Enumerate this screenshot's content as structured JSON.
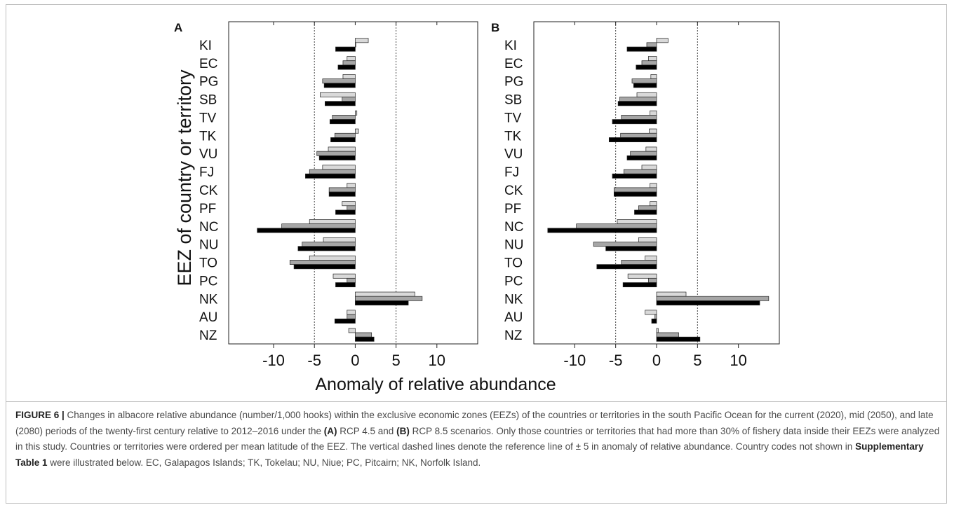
{
  "chart_data": {
    "type": "bar",
    "orientation": "horizontal",
    "ylabel": "EEZ of country or territory",
    "xlabel": "Anomaly of relative abundance",
    "categories": [
      "KI",
      "EC",
      "PG",
      "SB",
      "TV",
      "TK",
      "VU",
      "FJ",
      "CK",
      "PF",
      "NC",
      "NU",
      "TO",
      "PC",
      "NK",
      "AU",
      "NZ"
    ],
    "reference_lines": [
      -5,
      5
    ],
    "xticks": [
      -10,
      -5,
      0,
      5,
      10
    ],
    "series_colors": [
      "#d9d9d9",
      "#a6a6a6",
      "#000000"
    ],
    "panels": [
      {
        "label": "A",
        "xlim": [
          -15.5,
          15
        ],
        "series": [
          {
            "values": [
              1.6,
              -1.0,
              -1.5,
              -4.3,
              0.2,
              0.4,
              -3.3,
              -4.0,
              -1.0,
              -1.6,
              -5.6,
              -3.9,
              -5.6,
              -2.7,
              7.3,
              -1.0,
              -0.8
            ]
          },
          {
            "values": [
              0.0,
              -1.5,
              -4.0,
              -1.6,
              -2.8,
              -2.5,
              -4.7,
              -5.6,
              -3.2,
              -1.0,
              -9.0,
              -6.5,
              -8.0,
              -1.0,
              8.2,
              -1.0,
              2.0
            ]
          },
          {
            "values": [
              -2.4,
              -2.1,
              -3.8,
              -3.7,
              -3.1,
              -3.0,
              -4.4,
              -6.1,
              -3.2,
              -2.4,
              -12.0,
              -7.0,
              -7.5,
              -2.4,
              6.5,
              -2.5,
              2.3
            ]
          }
        ]
      },
      {
        "label": "B",
        "xlim": [
          -15,
          15
        ],
        "series": [
          {
            "values": [
              1.4,
              -1.0,
              -0.7,
              -2.4,
              -0.8,
              -0.9,
              -1.3,
              -1.8,
              -0.8,
              -0.8,
              -4.8,
              -2.2,
              -1.4,
              -3.5,
              3.6,
              -1.4,
              0.2
            ]
          },
          {
            "values": [
              -1.2,
              -1.8,
              -3.0,
              -4.5,
              -4.3,
              -4.4,
              -3.2,
              -4.0,
              -5.2,
              -2.2,
              -9.8,
              -7.7,
              -4.3,
              -1.0,
              13.7,
              -0.2,
              2.7
            ]
          },
          {
            "values": [
              -3.6,
              -2.5,
              -2.8,
              -4.7,
              -5.4,
              -5.8,
              -3.6,
              -5.4,
              -5.2,
              -2.7,
              -13.3,
              -6.2,
              -7.3,
              -4.1,
              12.6,
              -0.6,
              5.3
            ]
          }
        ]
      }
    ]
  },
  "caption": {
    "figure_label": "FIGURE 6 |",
    "text_1": " Changes in albacore relative abundance (number/1,000 hooks) within the exclusive economic zones (EEZs) of the countries or territories in the south Pacific Ocean for the current (2020), mid (2050), and late (2080) periods of the twenty-first century relative to 2012–2016 under the ",
    "a_label": "(A)",
    "text_2": " RCP 4.5 and ",
    "b_label": "(B)",
    "text_3": " RCP 8.5 scenarios. Only those countries or territories that had more than 30% of fishery data inside their EEZs were analyzed in this study. Countries or territories were ordered per mean latitude of the EEZ. The vertical dashed lines denote the reference line of ± 5 in anomaly of relative abundance. Country codes not shown in ",
    "supp_ref": "Supplementary Table 1",
    "text_4": " were illustrated below. EC, Galapagos Islands; TK, Tokelau; NU, Niue; PC, Pitcairn; NK, Norfolk Island."
  }
}
